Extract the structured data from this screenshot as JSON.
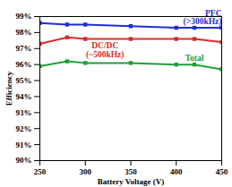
{
  "chart_data": {
    "type": "line",
    "x_label": "Battery Voltage (V)",
    "y_label": "Efficiency",
    "x": [
      250,
      280,
      300,
      350,
      400,
      420,
      450
    ],
    "series": [
      {
        "name": "PFC (>300kHz)",
        "color": "#1f2fd0",
        "marker": "square",
        "line_style": "solid",
        "values": [
          98.6,
          98.5,
          98.5,
          98.4,
          98.3,
          98.3,
          98.3
        ]
      },
      {
        "name": "DC/DC (~500kHz)",
        "color": "#e02a2a",
        "marker": "square",
        "line_style": "solid",
        "values": [
          97.3,
          97.7,
          97.6,
          97.6,
          97.6,
          97.6,
          97.4
        ]
      },
      {
        "name": "Total",
        "color": "#1fa03c",
        "marker": "square",
        "line_style": "solid",
        "values": [
          95.9,
          96.2,
          96.1,
          96.1,
          96.0,
          96.0,
          95.7
        ]
      }
    ],
    "xlim": [
      250,
      450
    ],
    "xticks": [
      250,
      300,
      350,
      400,
      450
    ],
    "ylim": [
      90,
      99
    ],
    "yticks": [
      {
        "value": 90,
        "label": "90%"
      },
      {
        "value": 91,
        "label": "91%"
      },
      {
        "value": 92,
        "label": "92%"
      },
      {
        "value": 93,
        "label": "93%"
      },
      {
        "value": 94,
        "label": "94%"
      },
      {
        "value": 95,
        "label": "95%"
      },
      {
        "value": 96,
        "label": "96%"
      },
      {
        "value": 97,
        "label": "97%"
      },
      {
        "value": 98,
        "label": "98%"
      },
      {
        "value": 99,
        "label": "99%"
      }
    ],
    "grid": false
  }
}
